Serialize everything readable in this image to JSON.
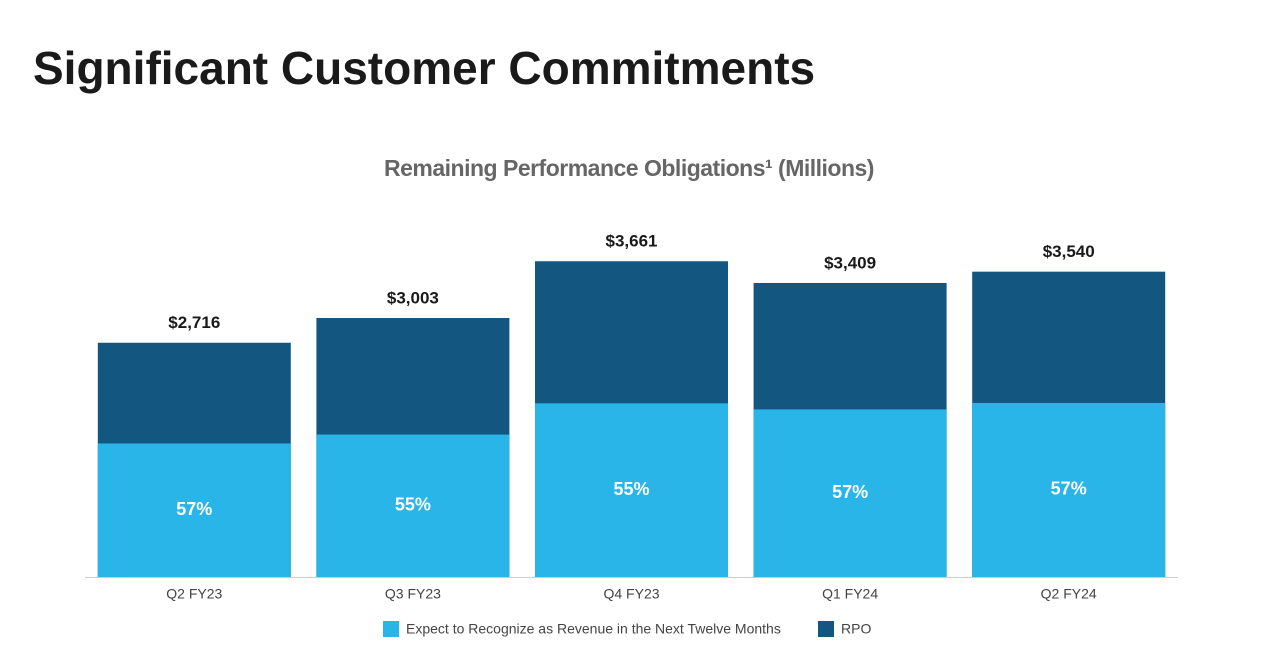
{
  "chart_data": {
    "type": "overlay-bar",
    "title": "Significant Customer Commitments",
    "subtitle": "Remaining Performance Obligations¹ (Millions)",
    "categories": [
      "Q2 FY23",
      "Q3 FY23",
      "Q4 FY23",
      "Q1 FY24",
      "Q2 FY24"
    ],
    "series": [
      {
        "name": "Expect to Recognize as Revenue in the Next Twelve Months",
        "color": "#29b5e8",
        "values": [
          57,
          55,
          55,
          57,
          57
        ],
        "value_labels": [
          "57%",
          "55%",
          "55%",
          "57%",
          "57%"
        ]
      },
      {
        "name": "RPO",
        "color": "#13567f",
        "values": [
          2716,
          3003,
          3661,
          3409,
          3540
        ],
        "value_labels": [
          "$2,716",
          "$3,003",
          "$3,661",
          "$3,409",
          "$3,540"
        ]
      }
    ],
    "ylim": [
      0,
      4000
    ]
  }
}
